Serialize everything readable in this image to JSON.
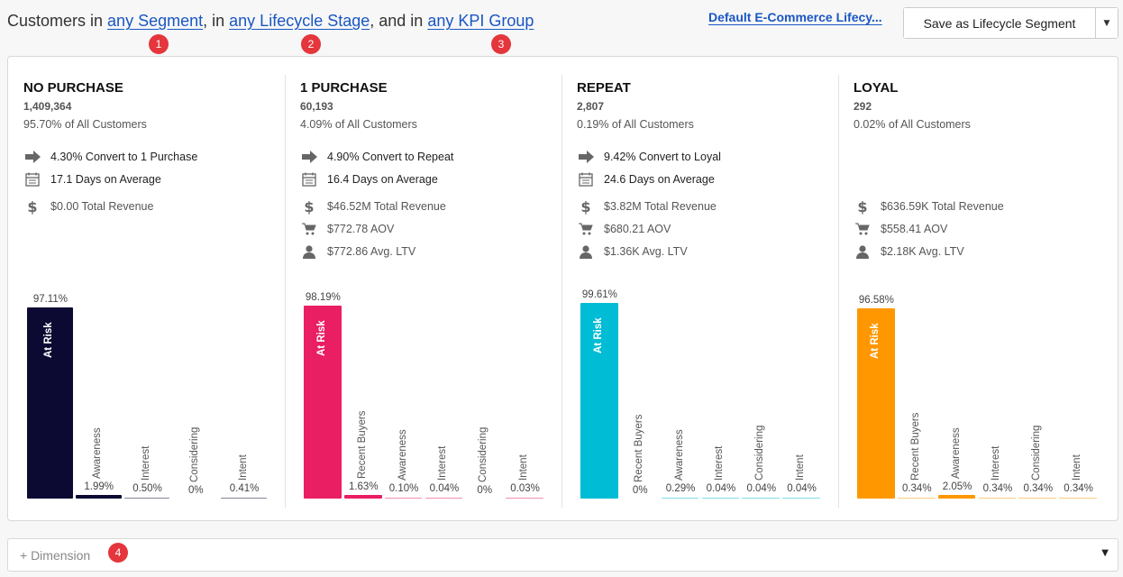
{
  "header": {
    "prefix": "Customers in",
    "segment_link": "any Segment",
    "sep1": ", in",
    "lifecycle_link": "any Lifecycle Stage",
    "sep2": ", and in",
    "kpi_link": "any KPI Group",
    "badges": [
      "1",
      "2",
      "3"
    ],
    "lifecycle_name_link": "Default E-Commerce Lifecy...",
    "save_button": "Save as Lifecycle Segment",
    "save_caret": "▼"
  },
  "stages": [
    {
      "title": "NO PURCHASE",
      "count": "1,409,364",
      "pct": "95.70% of All Customers",
      "metrics": [
        {
          "icon": "arrow-right-icon",
          "text": "4.30% Convert to 1 Purchase"
        },
        {
          "icon": "calendar-icon",
          "text": "17.1 Days on Average"
        },
        {
          "icon": "dollar-icon",
          "text": "$0.00 Total Revenue"
        }
      ],
      "color": "#0c0a33",
      "bars": [
        {
          "category": "At Risk",
          "value": 97.11,
          "label": "97.11%"
        },
        {
          "category": "Awareness",
          "value": 1.99,
          "label": "1.99%"
        },
        {
          "category": "Interest",
          "value": 0.5,
          "label": "0.50%"
        },
        {
          "category": "Considering",
          "value": 0,
          "label": "0%"
        },
        {
          "category": "Intent",
          "value": 0.41,
          "label": "0.41%"
        }
      ]
    },
    {
      "title": "1 PURCHASE",
      "count": "60,193",
      "pct": "4.09% of All Customers",
      "metrics": [
        {
          "icon": "arrow-right-icon",
          "text": "4.90% Convert to Repeat"
        },
        {
          "icon": "calendar-icon",
          "text": "16.4 Days on Average"
        },
        {
          "icon": "dollar-icon",
          "text": "$46.52M Total Revenue"
        },
        {
          "icon": "cart-icon",
          "text": "$772.78 AOV"
        },
        {
          "icon": "user-icon",
          "text": "$772.86 Avg. LTV"
        }
      ],
      "color": "#e91e63",
      "bars": [
        {
          "category": "At Risk",
          "value": 98.19,
          "label": "98.19%"
        },
        {
          "category": "Recent Buyers",
          "value": 1.63,
          "label": "1.63%"
        },
        {
          "category": "Awareness",
          "value": 0.1,
          "label": "0.10%"
        },
        {
          "category": "Interest",
          "value": 0.04,
          "label": "0.04%"
        },
        {
          "category": "Considering",
          "value": 0,
          "label": "0%"
        },
        {
          "category": "Intent",
          "value": 0.03,
          "label": "0.03%"
        }
      ]
    },
    {
      "title": "REPEAT",
      "count": "2,807",
      "pct": "0.19% of All Customers",
      "metrics": [
        {
          "icon": "arrow-right-icon",
          "text": "9.42% Convert to Loyal"
        },
        {
          "icon": "calendar-icon",
          "text": "24.6 Days on Average"
        },
        {
          "icon": "dollar-icon",
          "text": "$3.82M Total Revenue"
        },
        {
          "icon": "cart-icon",
          "text": "$680.21 AOV"
        },
        {
          "icon": "user-icon",
          "text": "$1.36K Avg. LTV"
        }
      ],
      "color": "#00bcd4",
      "bars": [
        {
          "category": "At Risk",
          "value": 99.61,
          "label": "99.61%"
        },
        {
          "category": "Recent Buyers",
          "value": 0,
          "label": "0%"
        },
        {
          "category": "Awareness",
          "value": 0.29,
          "label": "0.29%"
        },
        {
          "category": "Interest",
          "value": 0.04,
          "label": "0.04%"
        },
        {
          "category": "Considering",
          "value": 0.04,
          "label": "0.04%"
        },
        {
          "category": "Intent",
          "value": 0.04,
          "label": "0.04%"
        }
      ]
    },
    {
      "title": "LOYAL",
      "count": "292",
      "pct": "0.02% of All Customers",
      "metrics": [
        {
          "icon": "dollar-icon",
          "text": "$636.59K Total Revenue"
        },
        {
          "icon": "cart-icon",
          "text": "$558.41 AOV"
        },
        {
          "icon": "user-icon",
          "text": "$2.18K Avg. LTV"
        }
      ],
      "color": "#ff9800",
      "bars": [
        {
          "category": "At Risk",
          "value": 96.58,
          "label": "96.58%"
        },
        {
          "category": "Recent Buyers",
          "value": 0.34,
          "label": "0.34%"
        },
        {
          "category": "Awareness",
          "value": 2.05,
          "label": "2.05%"
        },
        {
          "category": "Interest",
          "value": 0.34,
          "label": "0.34%"
        },
        {
          "category": "Considering",
          "value": 0.34,
          "label": "0.34%"
        },
        {
          "category": "Intent",
          "value": 0.34,
          "label": "0.34%"
        }
      ]
    }
  ],
  "dimension": {
    "label": "+ Dimension",
    "badge": "4",
    "caret": "▼"
  },
  "chart_data": [
    {
      "type": "bar",
      "title": "NO PURCHASE",
      "categories": [
        "At Risk",
        "Awareness",
        "Interest",
        "Considering",
        "Intent"
      ],
      "values": [
        97.11,
        1.99,
        0.5,
        0,
        0.41
      ],
      "ylim": [
        0,
        100
      ]
    },
    {
      "type": "bar",
      "title": "1 PURCHASE",
      "categories": [
        "At Risk",
        "Recent Buyers",
        "Awareness",
        "Interest",
        "Considering",
        "Intent"
      ],
      "values": [
        98.19,
        1.63,
        0.1,
        0.04,
        0,
        0.03
      ],
      "ylim": [
        0,
        100
      ]
    },
    {
      "type": "bar",
      "title": "REPEAT",
      "categories": [
        "At Risk",
        "Recent Buyers",
        "Awareness",
        "Interest",
        "Considering",
        "Intent"
      ],
      "values": [
        99.61,
        0,
        0.29,
        0.04,
        0.04,
        0.04
      ],
      "ylim": [
        0,
        100
      ]
    },
    {
      "type": "bar",
      "title": "LOYAL",
      "categories": [
        "At Risk",
        "Recent Buyers",
        "Awareness",
        "Interest",
        "Considering",
        "Intent"
      ],
      "values": [
        96.58,
        0.34,
        2.05,
        0.34,
        0.34,
        0.34
      ],
      "ylim": [
        0,
        100
      ]
    }
  ]
}
